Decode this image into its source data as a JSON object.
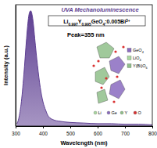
{
  "chart_data": {
    "type": "area",
    "title": "UVA Mechanoluminescence",
    "x_label": "Wavelength (nm)",
    "y_label": "Intensity (a.u.)",
    "series": [
      {
        "name": "Li0.997Y0.995GeO4:0.005Bi3+",
        "color": "#5e3f92",
        "x": [
          305,
          310,
          320,
          330,
          340,
          345,
          350,
          355,
          360,
          365,
          370,
          380,
          390,
          400,
          410,
          420,
          440,
          460,
          500,
          550,
          600,
          650,
          700,
          750,
          800
        ],
        "values": [
          0.02,
          0.05,
          0.18,
          0.42,
          0.72,
          0.85,
          0.93,
          0.95,
          0.92,
          0.84,
          0.72,
          0.5,
          0.32,
          0.2,
          0.13,
          0.08,
          0.05,
          0.04,
          0.03,
          0.025,
          0.02,
          0.02,
          0.015,
          0.015,
          0.01
        ]
      }
    ],
    "xlim": [
      300,
      800
    ],
    "xticks": [
      300,
      400,
      500,
      600,
      700,
      800
    ],
    "ylim": [
      0,
      1
    ],
    "tick_labels": "x",
    "annotations": [
      "Peak=355 nm",
      "GeO4",
      "LiO4",
      "Y(Bi)O6",
      "Li",
      "Ge",
      "Y",
      "O"
    ]
  }
}
